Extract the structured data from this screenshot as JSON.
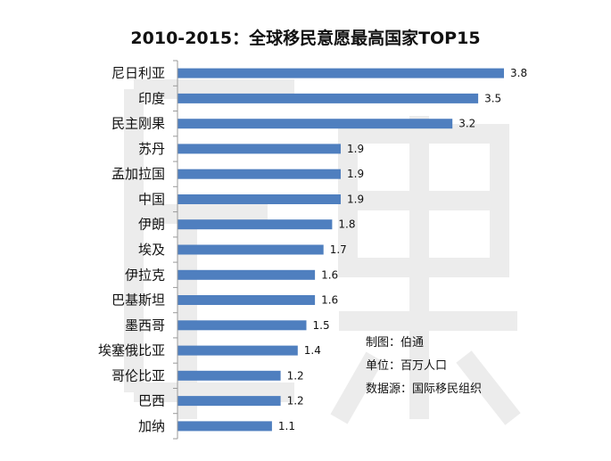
{
  "colors": {
    "bar": "#4F7FBF",
    "axis": "#9a9a9a",
    "text": "#111111",
    "watermark": "#ececec"
  },
  "watermark_icon": "watermark-glyph",
  "chart_data": {
    "type": "bar",
    "orientation": "horizontal",
    "title": "2010-2015：全球移民意愿最高国家TOP15",
    "categories": [
      "尼日利亚",
      "印度",
      "民主刚果",
      "苏丹",
      "孟加拉国",
      "中国",
      "伊朗",
      "埃及",
      "伊拉克",
      "巴基斯坦",
      "墨西哥",
      "埃塞俄比亚",
      "哥伦比亚",
      "巴西",
      "加纳"
    ],
    "values": [
      3.8,
      3.5,
      3.2,
      1.9,
      1.9,
      1.9,
      1.8,
      1.7,
      1.6,
      1.6,
      1.5,
      1.4,
      1.2,
      1.2,
      1.1
    ],
    "value_labels": [
      "3.8",
      "3.5",
      "3.2",
      "1.9",
      "1.9",
      "1.9",
      "1.8",
      "1.7",
      "1.6",
      "1.6",
      "1.5",
      "1.4",
      "1.2",
      "1.2",
      "1.1"
    ],
    "xlim": [
      0,
      3.8
    ],
    "grid": false,
    "legend": "none"
  },
  "notes": {
    "maker": "制图：伯通",
    "unit": "单位：百万人口",
    "source": "数据源：国际移民组织"
  }
}
